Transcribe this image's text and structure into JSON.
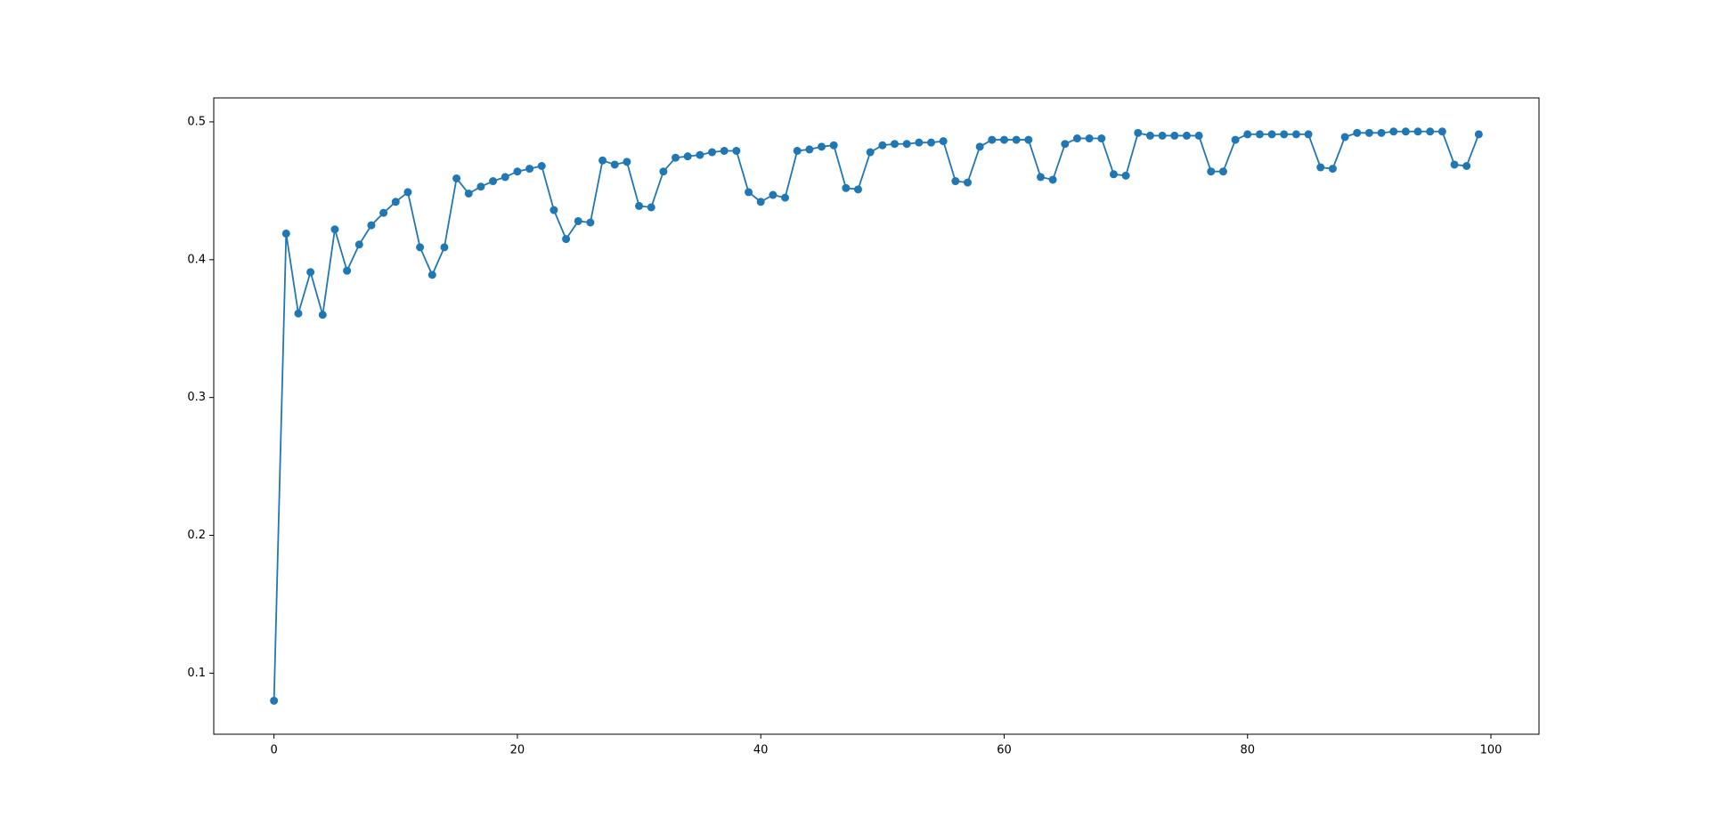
{
  "chart_data": {
    "type": "line",
    "color": "#1f77b4",
    "marker": "circle",
    "x": [
      0,
      1,
      2,
      3,
      4,
      5,
      6,
      7,
      8,
      9,
      10,
      11,
      12,
      13,
      14,
      15,
      16,
      17,
      18,
      19,
      20,
      21,
      22,
      23,
      24,
      25,
      26,
      27,
      28,
      29,
      30,
      31,
      32,
      33,
      34,
      35,
      36,
      37,
      38,
      39,
      40,
      41,
      42,
      43,
      44,
      45,
      46,
      47,
      48,
      49,
      50,
      51,
      52,
      53,
      54,
      55,
      56,
      57,
      58,
      59,
      60,
      61,
      62,
      63,
      64,
      65,
      66,
      67,
      68,
      69,
      70,
      71,
      72,
      73,
      74,
      75,
      76,
      77,
      78,
      79,
      80,
      81,
      82,
      83,
      84,
      85,
      86,
      87,
      88,
      89,
      90,
      91,
      92,
      93,
      94,
      95,
      96,
      97,
      98,
      99
    ],
    "values": [
      0.08,
      0.419,
      0.361,
      0.391,
      0.36,
      0.422,
      0.392,
      0.411,
      0.425,
      0.434,
      0.442,
      0.449,
      0.409,
      0.389,
      0.409,
      0.459,
      0.448,
      0.453,
      0.457,
      0.46,
      0.464,
      0.466,
      0.468,
      0.436,
      0.415,
      0.428,
      0.427,
      0.472,
      0.469,
      0.471,
      0.439,
      0.438,
      0.464,
      0.474,
      0.475,
      0.476,
      0.478,
      0.479,
      0.479,
      0.449,
      0.442,
      0.447,
      0.445,
      0.479,
      0.48,
      0.482,
      0.483,
      0.452,
      0.451,
      0.478,
      0.483,
      0.484,
      0.484,
      0.485,
      0.485,
      0.486,
      0.457,
      0.456,
      0.482,
      0.487,
      0.487,
      0.487,
      0.487,
      0.46,
      0.458,
      0.484,
      0.488,
      0.488,
      0.488,
      0.462,
      0.461,
      0.492,
      0.49,
      0.49,
      0.49,
      0.49,
      0.49,
      0.464,
      0.464,
      0.487,
      0.491,
      0.491,
      0.491,
      0.491,
      0.491,
      0.491,
      0.467,
      0.466,
      0.489,
      0.492,
      0.492,
      0.492,
      0.493,
      0.493,
      0.493,
      0.493,
      0.493,
      0.469,
      0.468,
      0.491
    ],
    "xlim": [
      -4.95,
      103.95
    ],
    "ylim": [
      0.0557,
      0.5174
    ],
    "xticks": [
      0,
      20,
      40,
      60,
      80,
      100
    ],
    "yticks": [
      0.1,
      0.2,
      0.3,
      0.4,
      0.5
    ]
  }
}
